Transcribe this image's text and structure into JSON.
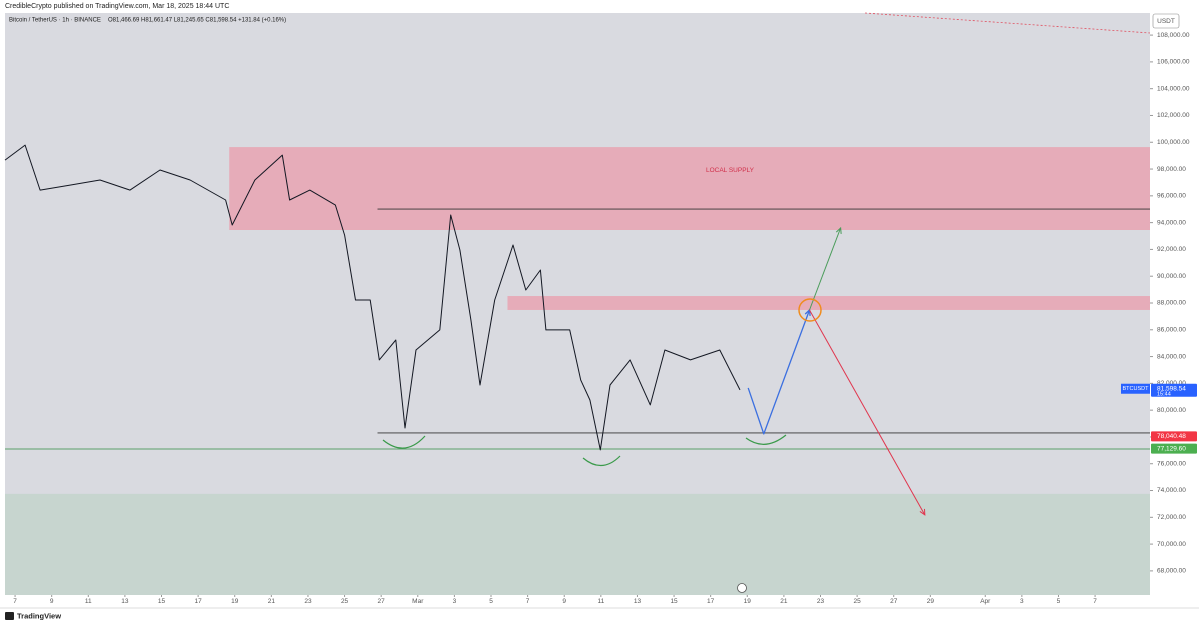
{
  "header": {
    "publisher": "CredibleCrypto published on TradingView.com, Mar 18, 2025 18:44 UTC",
    "symbol": "Bitcoin / TetherUS · 1h · BINANCE",
    "ohlc": "O81,466.69 H81,661.47 L81,245.65 C81,598.54 +131.84 (+0.16%)"
  },
  "chart_data": {
    "type": "line",
    "currency": "USDT",
    "xlim": [
      -0.55,
      62.0
    ],
    "ylim": [
      66200,
      109650
    ],
    "xticks": [
      {
        "value": 0,
        "label": "7"
      },
      {
        "value": 2,
        "label": "9"
      },
      {
        "value": 4,
        "label": "11"
      },
      {
        "value": 6,
        "label": "13"
      },
      {
        "value": 8,
        "label": "15"
      },
      {
        "value": 10,
        "label": "17"
      },
      {
        "value": 12,
        "label": "19"
      },
      {
        "value": 14,
        "label": "21"
      },
      {
        "value": 16,
        "label": "23"
      },
      {
        "value": 18,
        "label": "25"
      },
      {
        "value": 20,
        "label": "27"
      },
      {
        "value": 22,
        "label": "Mar"
      },
      {
        "value": 24,
        "label": "3"
      },
      {
        "value": 26,
        "label": "5"
      },
      {
        "value": 28,
        "label": "7"
      },
      {
        "value": 30,
        "label": "9"
      },
      {
        "value": 32,
        "label": "11"
      },
      {
        "value": 34,
        "label": "13"
      },
      {
        "value": 36,
        "label": "15"
      },
      {
        "value": 38,
        "label": "17"
      },
      {
        "value": 40,
        "label": "19"
      },
      {
        "value": 42,
        "label": "21"
      },
      {
        "value": 44,
        "label": "23"
      },
      {
        "value": 46,
        "label": "25"
      },
      {
        "value": 48,
        "label": "27"
      },
      {
        "value": 50,
        "label": "29"
      },
      {
        "value": 53,
        "label": "Apr"
      },
      {
        "value": 55,
        "label": "3"
      },
      {
        "value": 57,
        "label": "5"
      },
      {
        "value": 59,
        "label": "7"
      }
    ],
    "yticks": [
      {
        "value": 68000,
        "label": "68,000.00"
      },
      {
        "value": 70000,
        "label": "70,000.00"
      },
      {
        "value": 72000,
        "label": "72,000.00"
      },
      {
        "value": 74000,
        "label": "74,000.00"
      },
      {
        "value": 76000,
        "label": "76,000.00"
      },
      {
        "value": 78000,
        "label": "78,000.00"
      },
      {
        "value": 80000,
        "label": "80,000.00"
      },
      {
        "value": 82000,
        "label": "82,000.00"
      },
      {
        "value": 84000,
        "label": "84,000.00"
      },
      {
        "value": 86000,
        "label": "86,000.00"
      },
      {
        "value": 88000,
        "label": "88,000.00"
      },
      {
        "value": 90000,
        "label": "90,000.00"
      },
      {
        "value": 92000,
        "label": "92,000.00"
      },
      {
        "value": 94000,
        "label": "94,000.00"
      },
      {
        "value": 96000,
        "label": "96,000.00"
      },
      {
        "value": 98000,
        "label": "98,000.00"
      },
      {
        "value": 100000,
        "label": "100,000.00"
      },
      {
        "value": 102000,
        "label": "102,000.00"
      },
      {
        "value": 104000,
        "label": "104,000.00"
      },
      {
        "value": 106000,
        "label": "106,000.00"
      },
      {
        "value": 108000,
        "label": "108,000.00"
      }
    ],
    "zones": [
      {
        "label": "LOCAL SUPPLY",
        "from": 11.7,
        "range": [
          93450,
          99640
        ],
        "color": "#e8a3b1"
      },
      {
        "from": 26.9,
        "range": [
          87480,
          88520
        ],
        "color": "#e8a3b1"
      },
      {
        "from": -0.55,
        "range": [
          66200,
          73750
        ],
        "color": "#c3d3cb"
      }
    ],
    "levels": [
      {
        "value": 95010,
        "from": 19.8,
        "color": "#333333"
      },
      {
        "value": 78300,
        "from": 19.8,
        "color": "#333333"
      },
      {
        "value": 77100,
        "from": -0.55,
        "color": "#5aa06a"
      }
    ],
    "series": [
      {
        "color": "#131722",
        "width": 1,
        "x": [
          -0.55,
          0.55,
          1.37,
          3.0,
          4.64,
          6.28,
          7.92,
          9.56,
          11.5,
          11.86,
          13.1,
          14.6,
          15.0,
          16.1,
          17.5,
          18.0,
          18.6,
          19.4,
          19.9,
          20.8,
          21.3,
          21.9,
          23.2,
          23.8,
          24.3,
          24.9,
          25.4,
          26.2,
          27.2,
          27.9,
          28.7,
          29.0,
          30.3,
          30.9,
          31.4,
          31.97,
          32.5,
          33.6,
          34.7,
          35.5,
          36.9,
          38.5,
          39.6
        ],
        "values": [
          98670,
          99790,
          96430,
          96800,
          97180,
          96430,
          97930,
          97180,
          95690,
          93820,
          97180,
          99040,
          95690,
          96430,
          95310,
          93070,
          88220,
          88220,
          83750,
          85240,
          78670,
          84490,
          85990,
          94570,
          91960,
          86730,
          81880,
          88220,
          92330,
          88970,
          90460,
          85990,
          85990,
          82250,
          80760,
          77030,
          81880,
          83750,
          80390,
          84490,
          83750,
          84490,
          81510
        ]
      },
      {
        "color": "#3b6fe0",
        "width": 1.3,
        "x": [
          40.05,
          40.9,
          43.4
        ],
        "values": [
          81660,
          78230,
          87480
        ]
      },
      {
        "color": "#4a9c5a",
        "width": 1,
        "x": [
          43.4,
          45.1
        ],
        "values": [
          87480,
          93600
        ]
      },
      {
        "color": "#e0364e",
        "width": 1,
        "x": [
          43.4,
          49.7
        ],
        "values": [
          87480,
          72180
        ]
      }
    ],
    "price_labels": [
      {
        "symbol": "BTCUSDT",
        "value": 81598.54,
        "label": "81,598.54",
        "countdown": "15:44",
        "color": "#2962ff"
      },
      {
        "value": 78040.48,
        "label": "78,040.48",
        "color": "#f23645"
      },
      {
        "value": 77129.6,
        "label": "77,129.60",
        "color": "#4caf50"
      }
    ]
  },
  "footer": {
    "brand": "TradingView"
  }
}
